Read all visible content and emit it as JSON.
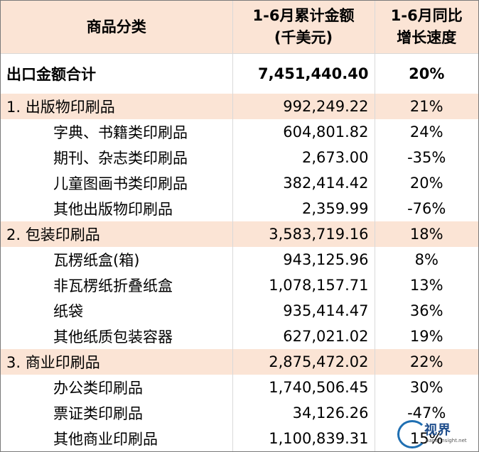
{
  "header": {
    "col1": "商品分类",
    "col2_line1": "1-6月累计金额",
    "col2_line2": "(千美元)",
    "col3_line1": "1-6月同比",
    "col3_line2": "增长速度"
  },
  "rows": [
    {
      "name": "出口金额合计",
      "amount": "7,451,440.40",
      "growth": "20%"
    },
    {
      "name": "1. 出版物印刷品",
      "amount": "992,249.22",
      "growth": "21%"
    },
    {
      "name": "字典、书籍类印刷品",
      "amount": "604,801.82",
      "growth": "24%"
    },
    {
      "name": "期刊、杂志类印刷品",
      "amount": "2,673.00",
      "growth": "-35%"
    },
    {
      "name": "儿童图画书类印刷品",
      "amount": "382,414.42",
      "growth": "20%"
    },
    {
      "name": "其他出版物印刷品",
      "amount": "2,359.99",
      "growth": "-76%"
    },
    {
      "name": "2. 包装印刷品",
      "amount": "3,583,719.16",
      "growth": "18%"
    },
    {
      "name": "瓦楞纸盒(箱)",
      "amount": "943,125.96",
      "growth": "8%"
    },
    {
      "name": "非瓦楞纸折叠纸盒",
      "amount": "1,078,157.71",
      "growth": "13%"
    },
    {
      "name": "纸袋",
      "amount": "935,414.47",
      "growth": "36%"
    },
    {
      "name": "其他纸质包装容器",
      "amount": "627,021.02",
      "growth": "19%"
    },
    {
      "name": "3. 商业印刷品",
      "amount": "2,875,472.02",
      "growth": "22%"
    },
    {
      "name": "办公类印刷品",
      "amount": "1,740,506.45",
      "growth": "30%"
    },
    {
      "name": "票证类印刷品",
      "amount": "34,126.26",
      "growth": "-47%"
    },
    {
      "name": "其他商业印刷品",
      "amount": "1,100,839.31",
      "growth": "15%"
    }
  ],
  "watermark": {
    "text": "视界",
    "url": "paperinsight.net"
  }
}
